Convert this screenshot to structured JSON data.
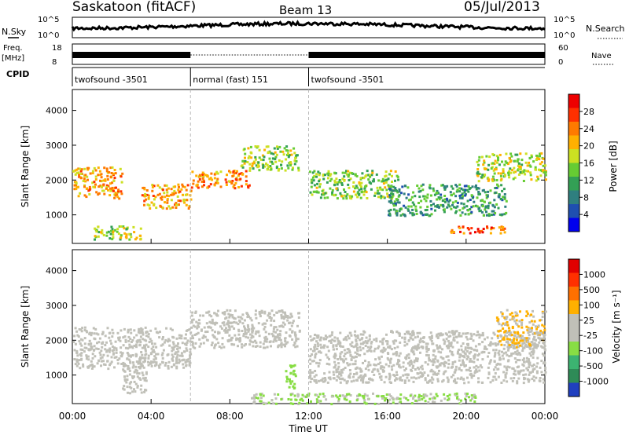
{
  "header": {
    "title": "Saskatoon (fitACF)",
    "beam": "Beam 13",
    "date": "05/Jul/2013"
  },
  "strips": {
    "nsky_label": "N.Sky",
    "nsky_ticks": [
      "10^5",
      "10^0"
    ],
    "nsearch_ticks": [
      "10^5",
      "10^0"
    ],
    "nsearch_label": "N.Search",
    "freq_label": "Freq.",
    "freq_unit": "[MHz]",
    "freq_ticks": [
      "18",
      "8"
    ],
    "nave_ticks": [
      "60",
      "0"
    ],
    "nave_label": "Nave",
    "cpid_label": "CPID",
    "cpid_segments": [
      {
        "label": "twofsound -3501",
        "start": 0,
        "end": 6
      },
      {
        "label": "normal (fast) 151",
        "start": 6,
        "end": 12
      },
      {
        "label": "twofsound -3501",
        "start": 12,
        "end": 24
      }
    ]
  },
  "power_panel": {
    "colorbar_title": "Power [dB]",
    "colorbar_ticks": [
      "28",
      "24",
      "20",
      "16",
      "12",
      "8",
      "4"
    ],
    "colors": [
      "#0000ee",
      "#1f4fb0",
      "#2f7f7f",
      "#33a055",
      "#66cc33",
      "#cce022",
      "#ffb000",
      "#ff7a00",
      "#ff3000",
      "#ee0000"
    ]
  },
  "velocity_panel": {
    "colorbar_title": "Velocity [m s⁻¹]",
    "colorbar_ticks": [
      "1000",
      "500",
      "100",
      "25",
      "-25",
      "-100",
      "-500",
      "-1000"
    ],
    "colors": [
      "#2040c0",
      "#2e8b57",
      "#3cb371",
      "#88dd44",
      "#c0c0b8",
      "#c0c0b8",
      "#ffb000",
      "#ff7000",
      "#ff3000",
      "#e00000"
    ]
  },
  "chart_data": [
    {
      "type": "heatmap",
      "title": "Saskatoon (fitACF)",
      "subtitle": "Beam 13",
      "xlabel": "Time UT",
      "ylabel": "Slant Range [km]",
      "x_ticks": [
        "00:00",
        "04:00",
        "08:00",
        "12:00",
        "16:00",
        "20:00",
        "00:00"
      ],
      "y_ticks": [
        "1000",
        "2000",
        "3000",
        "4000"
      ],
      "xlim_hours": [
        0,
        24
      ],
      "ylim_km": [
        180,
        4600
      ],
      "colorbar": "Power [dB]",
      "colorbar_range": [
        0,
        30
      ],
      "bands": [
        {
          "start": 0.0,
          "end": 2.5,
          "range_km": [
            1500,
            2400
          ],
          "value": 20
        },
        {
          "start": 1.0,
          "end": 3.5,
          "range_km": [
            300,
            700
          ],
          "value": 16
        },
        {
          "start": 3.5,
          "end": 6.0,
          "range_km": [
            1200,
            1900
          ],
          "value": 20
        },
        {
          "start": 6.0,
          "end": 9.0,
          "range_km": [
            1800,
            2300
          ],
          "value": 22
        },
        {
          "start": 8.5,
          "end": 11.5,
          "range_km": [
            2300,
            3000
          ],
          "value": 14
        },
        {
          "start": 12.0,
          "end": 16.5,
          "range_km": [
            1500,
            2300
          ],
          "value": 14
        },
        {
          "start": 16.0,
          "end": 22.0,
          "range_km": [
            1000,
            1900
          ],
          "value": 10
        },
        {
          "start": 19.0,
          "end": 22.0,
          "range_km": [
            500,
            700
          ],
          "value": 24
        },
        {
          "start": 20.5,
          "end": 24.0,
          "range_km": [
            2000,
            2800
          ],
          "value": 16
        }
      ],
      "vertical_markers_hours": [
        6,
        12
      ]
    },
    {
      "type": "heatmap",
      "xlabel": "Time UT",
      "ylabel": "Slant Range [km]",
      "x_ticks": [
        "00:00",
        "04:00",
        "08:00",
        "12:00",
        "16:00",
        "20:00",
        "00:00"
      ],
      "y_ticks": [
        "1000",
        "2000",
        "3000",
        "4000"
      ],
      "xlim_hours": [
        0,
        24
      ],
      "ylim_km": [
        180,
        4600
      ],
      "colorbar": "Velocity [m s⁻¹]",
      "colorbar_range": [
        -1000,
        1000
      ],
      "bands": [
        {
          "start": 0.0,
          "end": 6.0,
          "range_km": [
            1200,
            2400
          ],
          "value": 0
        },
        {
          "start": 6.0,
          "end": 11.5,
          "range_km": [
            1800,
            2900
          ],
          "value": 0
        },
        {
          "start": 12.0,
          "end": 24.0,
          "range_km": [
            800,
            2300
          ],
          "value": 0
        },
        {
          "start": 2.5,
          "end": 3.8,
          "range_km": [
            500,
            1400
          ],
          "value": 150
        },
        {
          "start": 21.5,
          "end": 24.0,
          "range_km": [
            1800,
            2900
          ],
          "value": 200
        },
        {
          "start": 10.8,
          "end": 11.3,
          "range_km": [
            600,
            1400
          ],
          "value": -300
        },
        {
          "start": 9.0,
          "end": 20.5,
          "range_km": [
            200,
            500
          ],
          "value": -200
        }
      ],
      "vertical_markers_hours": [
        6,
        12
      ]
    }
  ]
}
